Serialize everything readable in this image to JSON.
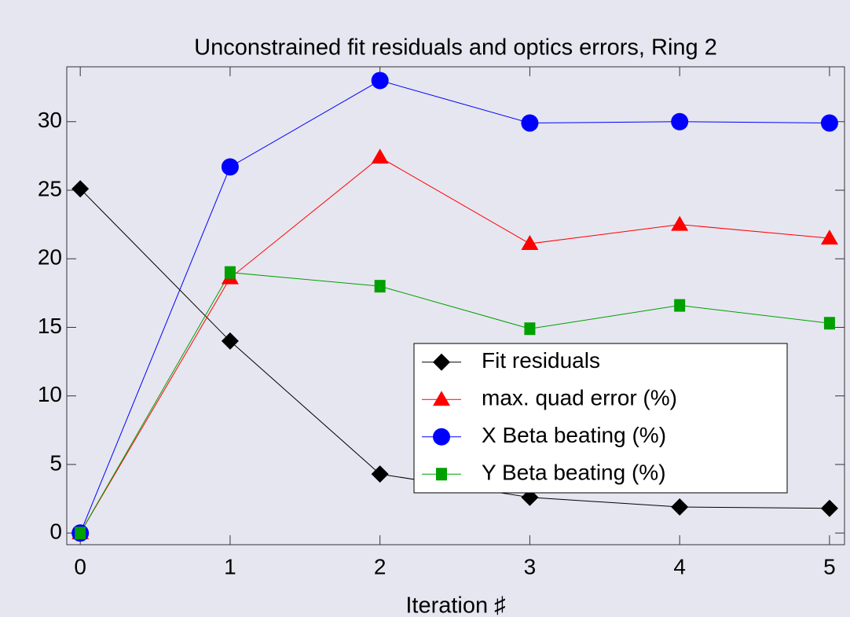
{
  "chart_data": {
    "type": "line",
    "title": "Unconstrained fit residuals and optics errors, Ring 2",
    "x_label": "Iteration ♯",
    "x": [
      0,
      1,
      2,
      3,
      4,
      5
    ],
    "xlim": [
      -0.09,
      5.1
    ],
    "xticks": [
      0,
      1,
      2,
      3,
      4,
      5
    ],
    "ylim": [
      -0.85,
      34
    ],
    "yticks": [
      0,
      5,
      10,
      15,
      20,
      25,
      30
    ],
    "legend_position": "lower right",
    "series": [
      {
        "name": "Fit residuals",
        "color": "#000000",
        "marker": "diamond",
        "values": [
          25.1,
          14.0,
          4.3,
          2.6,
          1.9,
          1.8
        ]
      },
      {
        "name": "max. quad error (%)",
        "color": "#ff0000",
        "marker": "triangle",
        "values": [
          0,
          18.6,
          27.4,
          21.1,
          22.5,
          21.5
        ]
      },
      {
        "name": "X Beta beating (%)",
        "color": "#0000ff",
        "marker": "circle",
        "values": [
          0,
          26.7,
          33.0,
          29.9,
          30.0,
          29.9
        ]
      },
      {
        "name": "Y Beta beating (%)",
        "color": "#00a000",
        "marker": "square",
        "values": [
          0,
          19.0,
          18.0,
          14.9,
          16.6,
          15.3
        ]
      }
    ]
  }
}
